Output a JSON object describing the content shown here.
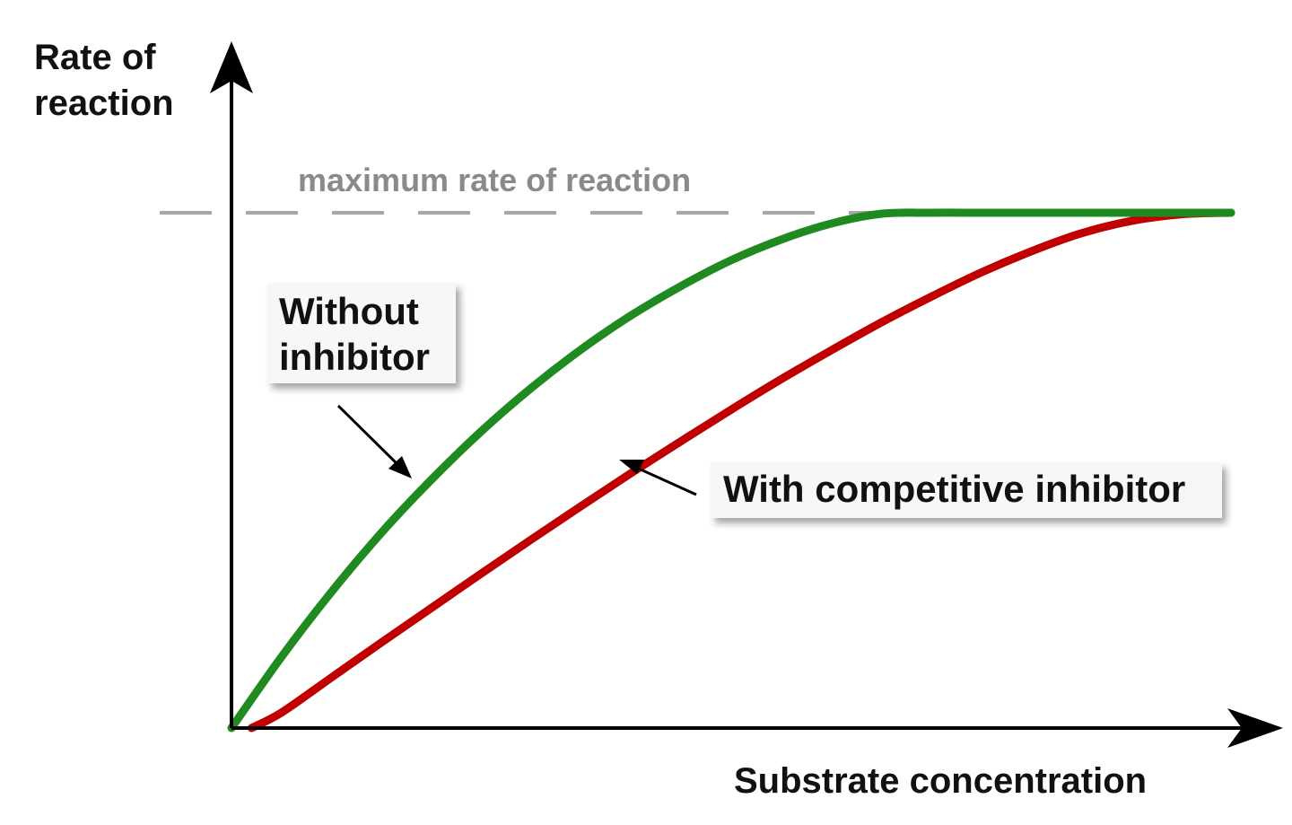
{
  "chart_data": {
    "type": "line",
    "title": "",
    "xlabel": "Substrate concentration",
    "ylabel_lines": [
      "Rate of",
      "reaction"
    ],
    "xlim": [
      0,
      10
    ],
    "ylim": [
      0,
      10
    ],
    "grid": false,
    "reference_line": {
      "label": "maximum rate of reaction",
      "y": 10,
      "color": "#a6a6a6",
      "style": "dashed"
    },
    "series": [
      {
        "name": "Without inhibitor",
        "name_lines": [
          "Without",
          "inhibitor"
        ],
        "color": "#1f8a1f",
        "x": [
          0,
          0.5,
          1,
          1.5,
          2,
          2.5,
          3,
          3.5,
          4,
          4.5,
          5,
          5.5,
          6,
          6.5,
          7,
          7.5,
          8,
          8.5,
          9,
          9.5,
          10
        ],
        "y": [
          0,
          1.38,
          2.64,
          3.79,
          4.82,
          5.76,
          6.6,
          7.35,
          8.01,
          8.58,
          9.08,
          9.48,
          9.79,
          9.98,
          10.0,
          10.0,
          10.0,
          10.0,
          10.0,
          10.0,
          10.0
        ]
      },
      {
        "name": "With competitive inhibitor",
        "name_lines": [
          "With competitive inhibitor"
        ],
        "color": "#c00000",
        "x": [
          0.2,
          0.5,
          1,
          1.5,
          2,
          2.5,
          3,
          3.5,
          4,
          4.5,
          5,
          5.5,
          6,
          6.5,
          7,
          7.5,
          8,
          8.5,
          9,
          9.5,
          10
        ],
        "y": [
          0,
          0.3,
          0.98,
          1.66,
          2.33,
          3.0,
          3.66,
          4.31,
          4.95,
          5.57,
          6.18,
          6.77,
          7.33,
          7.87,
          8.37,
          8.84,
          9.25,
          9.6,
          9.84,
          9.97,
          10.0
        ]
      }
    ]
  }
}
